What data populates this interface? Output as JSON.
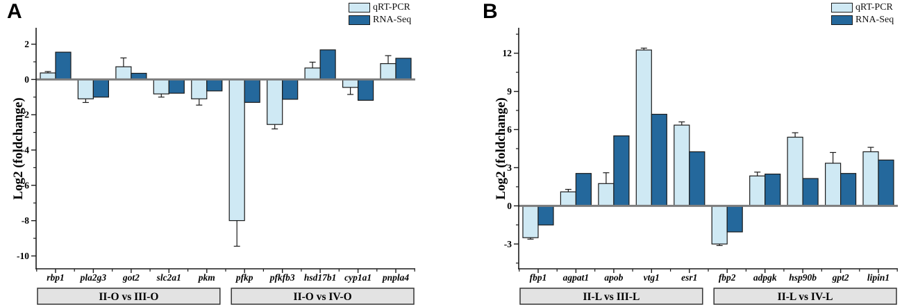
{
  "figure": {
    "panels": [
      {
        "letter": "A"
      },
      {
        "letter": "B"
      }
    ]
  },
  "legend": {
    "items": [
      {
        "label": "qRT-PCR"
      },
      {
        "label": "RNA-Seq"
      }
    ]
  },
  "colors": {
    "qrt_pcr_fill": "#cfe9f4",
    "rna_seq_fill": "#24689c",
    "bar_outline": "#1a1a1a",
    "zero_line": "#7d7d7d",
    "axis_line": "#1a1a1a",
    "group_box_fill": "#e3e3e3",
    "group_box_border": "#333333"
  },
  "chart_data": [
    {
      "type": "bar",
      "panel": "A",
      "title": "",
      "xlabel": "",
      "ylabel": "Log2 (foldchange)",
      "categories": [
        "rbp1",
        "pla2g3",
        "got2",
        "slc2a1",
        "pkm",
        "pfkp",
        "pfkfb3",
        "hsd17b1",
        "cyp1a1",
        "pnpla4"
      ],
      "series": [
        {
          "name": "qRT-PCR",
          "color": "#cfe9f4",
          "values": [
            0.37,
            -1.1,
            0.72,
            -0.82,
            -1.1,
            -8.0,
            -2.55,
            0.65,
            -0.45,
            0.9
          ],
          "errors": [
            0.08,
            0.2,
            0.5,
            0.18,
            0.35,
            1.45,
            0.25,
            0.33,
            0.4,
            0.45
          ]
        },
        {
          "name": "RNA-Seq",
          "color": "#24689c",
          "values": [
            1.55,
            -1.0,
            0.35,
            -0.78,
            -0.65,
            -1.3,
            -1.12,
            1.68,
            -1.18,
            1.2
          ]
        }
      ],
      "groups": [
        {
          "label": "II-O vs III-O",
          "span": [
            0,
            4
          ]
        },
        {
          "label": "II-O vs IV-O",
          "span": [
            5,
            9
          ]
        }
      ],
      "yticks_major": [
        2,
        0,
        -2,
        -4,
        -6,
        -8,
        -10
      ],
      "minor_step": 1,
      "ylim": [
        -10.73,
        2.93
      ],
      "grid": false,
      "legend_position": "top-right"
    },
    {
      "type": "bar",
      "panel": "B",
      "title": "",
      "xlabel": "",
      "ylabel": "Log2 (foldchange)",
      "categories": [
        "fbp1",
        "agpat1",
        "apob",
        "vtg1",
        "esr1",
        "fbp2",
        "adpgk",
        "hsp90b",
        "gpt2",
        "lipin1"
      ],
      "series": [
        {
          "name": "qRT-PCR",
          "color": "#cfe9f4",
          "values": [
            -2.5,
            1.1,
            1.75,
            12.25,
            6.35,
            -3.0,
            2.35,
            5.4,
            3.35,
            4.25
          ],
          "errors": [
            0.12,
            0.2,
            0.85,
            0.15,
            0.25,
            0.12,
            0.3,
            0.35,
            0.85,
            0.35
          ]
        },
        {
          "name": "RNA-Seq",
          "color": "#24689c",
          "values": [
            -1.5,
            2.55,
            5.5,
            7.2,
            4.25,
            -2.05,
            2.5,
            2.15,
            2.55,
            3.6
          ]
        }
      ],
      "groups": [
        {
          "label": "II-L vs III-L",
          "span": [
            0,
            4
          ]
        },
        {
          "label": "II-L vs IV-L",
          "span": [
            5,
            9
          ]
        }
      ],
      "yticks_major": [
        12,
        9,
        6,
        3,
        0,
        -3
      ],
      "minor_step": 1.5,
      "ylim": [
        -4.95,
        14.0
      ],
      "grid": false,
      "legend_position": "top-right"
    }
  ]
}
